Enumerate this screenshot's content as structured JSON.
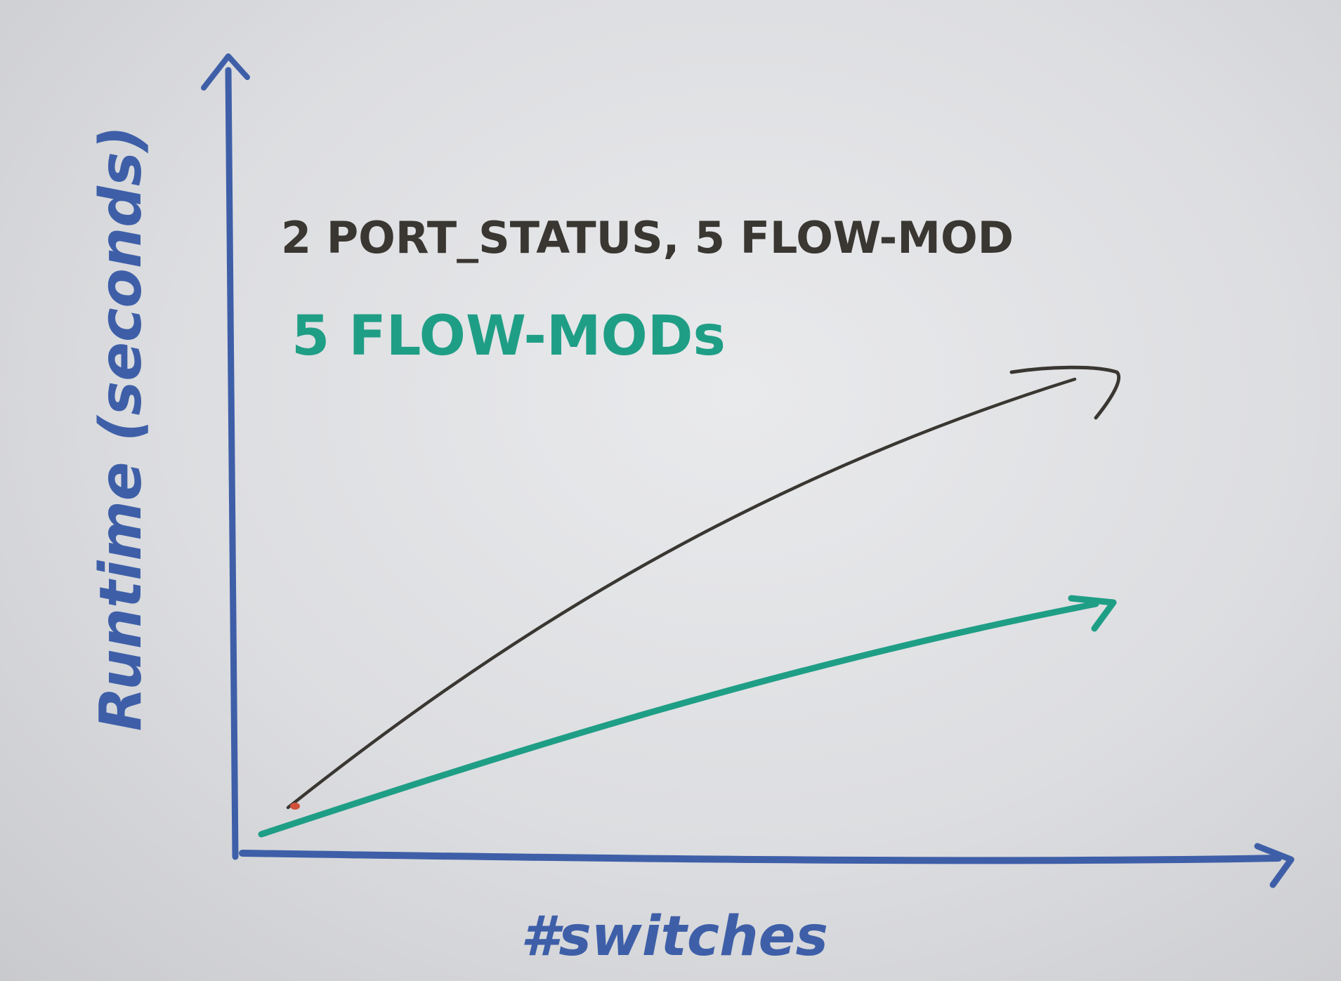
{
  "chart_data": {
    "type": "line",
    "title": "",
    "xlabel": "#switches",
    "ylabel": "Runtime (seconds)",
    "grid": false,
    "legend_placement": "top-left",
    "series": [
      {
        "name": "2 PORT_STATUS, 5 FLOW-MOD",
        "color": "#3a3732",
        "trend": "increasing, steeper"
      },
      {
        "name": "5 FLOW-MODs",
        "color": "#1f9e86",
        "trend": "increasing, shallower"
      }
    ],
    "axis_color": "#3e5fa8"
  }
}
